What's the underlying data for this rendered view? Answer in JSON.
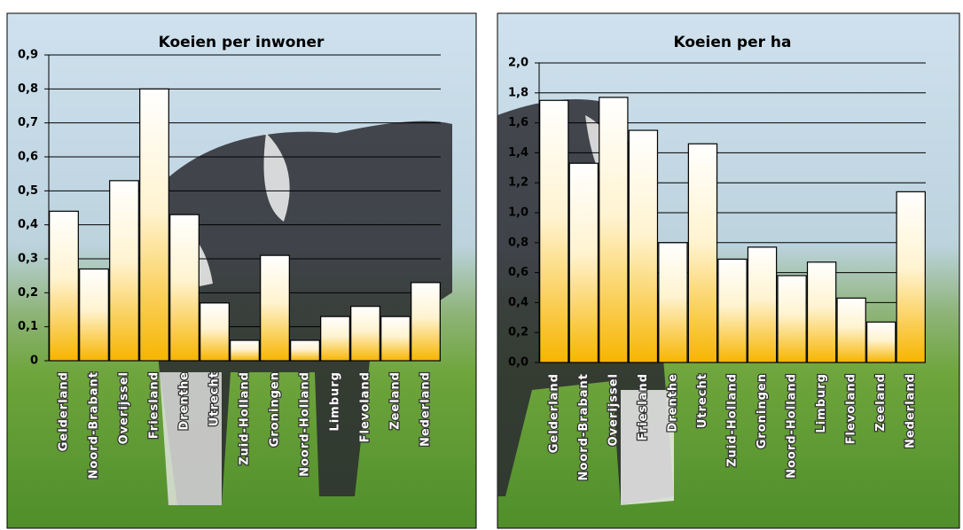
{
  "chart_data": [
    {
      "type": "bar",
      "title": "Koeien per inwoner",
      "categories": [
        "Gelderland",
        "Noord-Brabant",
        "Overijssel",
        "Friesland",
        "Drenthe",
        "Utrecht",
        "Zuid-Holland",
        "Groningen",
        "Noord-Holland",
        "Limburg",
        "Flevoland",
        "Zeeland",
        "Nederland"
      ],
      "values": [
        0.44,
        0.27,
        0.53,
        0.8,
        0.43,
        0.17,
        0.06,
        0.31,
        0.06,
        0.13,
        0.16,
        0.13,
        0.23
      ],
      "color": "#f7b500",
      "ylim": [
        0,
        0.9
      ],
      "yticks": [
        0,
        {
          "value": 0.1,
          "label": "0,1"
        },
        {
          "value": 0.2,
          "label": "0,2"
        },
        {
          "value": 0.3,
          "label": "0,3"
        },
        {
          "value": 0.4,
          "label": "0,4"
        },
        {
          "value": 0.5,
          "label": "0,5"
        },
        {
          "value": 0.6,
          "label": "0,6"
        },
        {
          "value": 0.7,
          "label": "0,7"
        },
        {
          "value": 0.8,
          "label": "0,8"
        },
        {
          "value": 0.9,
          "label": "0,9"
        }
      ],
      "grid": true
    },
    {
      "type": "bar",
      "title": "Koeien per ha",
      "categories": [
        "Gelderland",
        "Noord-Brabant",
        "Overijssel",
        "Friesland",
        "Drenthe",
        "Utrecht",
        "Zuid-Holland",
        "Groningen",
        "Noord-Holland",
        "Limburg",
        "Flevoland",
        "Zeeland",
        "Nederland"
      ],
      "values": [
        1.75,
        1.33,
        1.77,
        1.55,
        0.8,
        1.46,
        0.69,
        0.77,
        0.58,
        0.67,
        0.43,
        0.27,
        1.14
      ],
      "color": "#f7b500",
      "ylim": [
        0,
        2.0
      ],
      "yticks": [
        {
          "value": 0,
          "label": "0,0"
        },
        {
          "value": 0.2,
          "label": "0,2"
        },
        {
          "value": 0.4,
          "label": "0,4"
        },
        {
          "value": 0.6,
          "label": "0,6"
        },
        {
          "value": 0.8,
          "label": "0,8"
        },
        {
          "value": 1.0,
          "label": "1,0"
        },
        {
          "value": 1.2,
          "label": "1,2"
        },
        {
          "value": 1.4,
          "label": "1,4"
        },
        {
          "value": 1.6,
          "label": "1,6"
        },
        {
          "value": 1.8,
          "label": "1,8"
        },
        {
          "value": 2.0,
          "label": "2,0"
        }
      ],
      "grid": true
    }
  ]
}
